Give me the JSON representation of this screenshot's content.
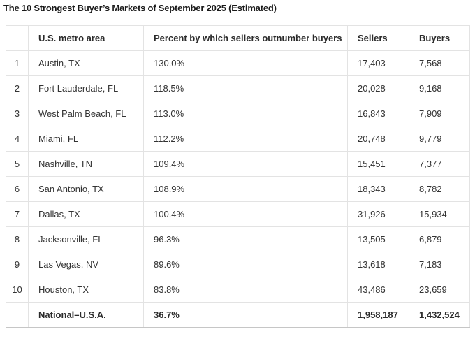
{
  "title": "The 10 Strongest Buyer’s Markets of September 2025 (Estimated)",
  "chart_data": {
    "type": "table",
    "title": "The 10 Strongest Buyer’s Markets of September 2025 (Estimated)",
    "columns": [
      "",
      "U.S. metro area",
      "Percent by which sellers outnumber buyers",
      "Sellers",
      "Buyers"
    ],
    "rows": [
      [
        "1",
        "Austin, TX",
        "130.0%",
        "17,403",
        "7,568"
      ],
      [
        "2",
        "Fort Lauderdale, FL",
        "118.5%",
        "20,028",
        "9,168"
      ],
      [
        "3",
        "West Palm Beach, FL",
        "113.0%",
        "16,843",
        "7,909"
      ],
      [
        "4",
        "Miami, FL",
        "112.2%",
        "20,748",
        "9,779"
      ],
      [
        "5",
        "Nashville, TN",
        "109.4%",
        "15,451",
        "7,377"
      ],
      [
        "6",
        "San Antonio, TX",
        "108.9%",
        "18,343",
        "8,782"
      ],
      [
        "7",
        "Dallas, TX",
        "100.4%",
        "31,926",
        "15,934"
      ],
      [
        "8",
        "Jacksonville, FL",
        "96.3%",
        "13,505",
        "6,879"
      ],
      [
        "9",
        "Las Vegas, NV",
        "89.6%",
        "13,618",
        "7,183"
      ],
      [
        "10",
        "Houston, TX",
        "83.8%",
        "43,486",
        "23,659"
      ]
    ],
    "summary_row": [
      "",
      "National–U.S.A.",
      "36.7%",
      "1,958,187",
      "1,432,524"
    ],
    "legend": "none",
    "grid": "full cell borders"
  },
  "colors": {
    "background": "#ffffff",
    "border": "#e3e3e3",
    "bottom_border": "#c6c6c6",
    "text": "#333333",
    "title_text": "#1a1a1a"
  }
}
